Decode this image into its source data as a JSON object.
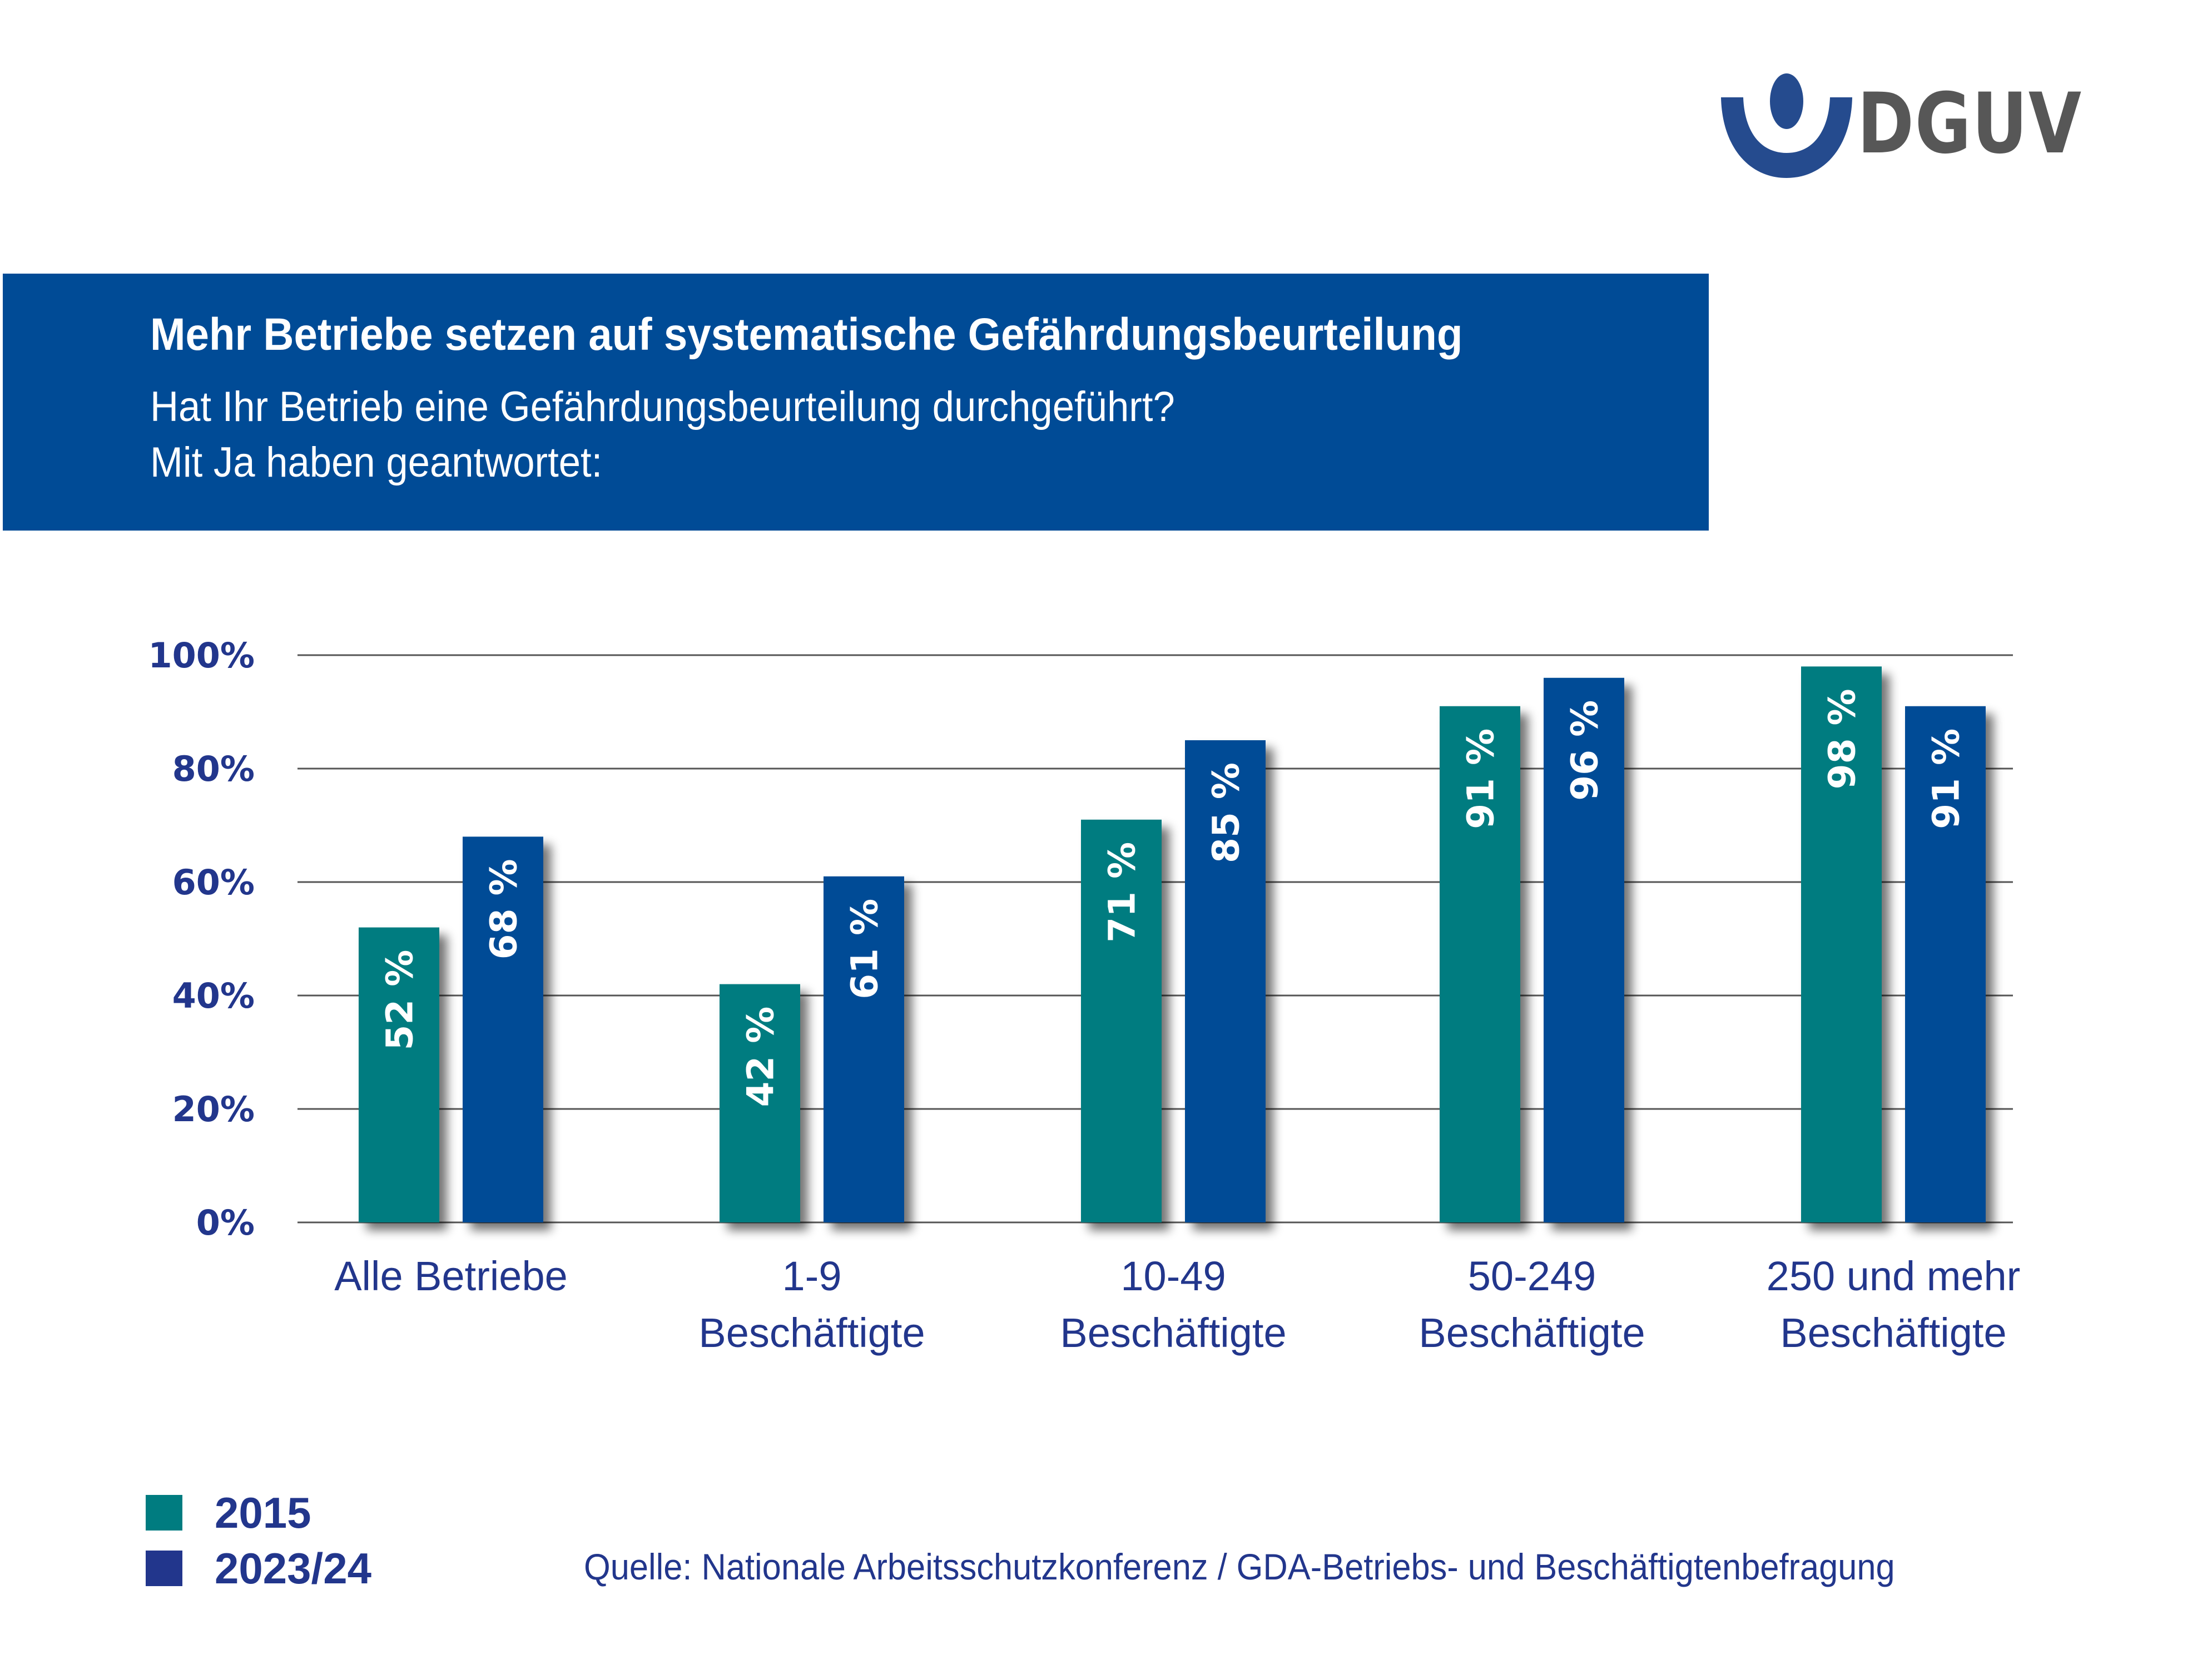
{
  "logo": {
    "text": "DGUV",
    "icon": "dguv-person-icon",
    "icon_color": "#254b8e",
    "text_color": "#575757"
  },
  "header": {
    "title": "Mehr Betriebe setzen auf systematische Gefährdungsbeurteilung",
    "subtitle_line1": "Hat Ihr Betrieb eine Gefährdungsbeurteilung durchgeführt?",
    "subtitle_line2": "Mit Ja haben geantwortet:",
    "background": "#004b96"
  },
  "legend": [
    {
      "label": "2015",
      "color": "#007c80"
    },
    {
      "label": "2023/24",
      "color": "#22368c"
    }
  ],
  "source": "Quelle: Nationale Arbeitsschutzkonferenz / GDA-Betriebs- und Beschäftigtenbefragung",
  "chart_data": {
    "type": "bar",
    "title": "Mehr Betriebe setzen auf systematische Gefährdungsbeurteilung",
    "xlabel": "",
    "ylabel": "",
    "ylim": [
      0,
      100
    ],
    "yticks": [
      0,
      20,
      40,
      60,
      80,
      100
    ],
    "ytick_labels": [
      "0%",
      "20%",
      "40%",
      "60%",
      "80%",
      "100%"
    ],
    "grid": true,
    "legend_position": "bottom-left",
    "categories": [
      [
        "Alle Betriebe"
      ],
      [
        "1-9",
        "Beschäftigte"
      ],
      [
        "10-49",
        "Beschäftigte"
      ],
      [
        "50-249",
        "Beschäftigte"
      ],
      [
        "250 und mehr",
        "Beschäftigte"
      ]
    ],
    "series": [
      {
        "name": "2015",
        "color": "#007c80",
        "values": [
          52,
          42,
          71,
          91,
          98
        ],
        "labels": [
          "52 %",
          "42 %",
          "71 %",
          "91 %",
          "98 %"
        ]
      },
      {
        "name": "2023/24",
        "color": "#004b96",
        "values": [
          68,
          61,
          85,
          96,
          91
        ],
        "labels": [
          "68 %",
          "61 %",
          "85 %",
          "96 %",
          "91 %"
        ]
      }
    ]
  }
}
